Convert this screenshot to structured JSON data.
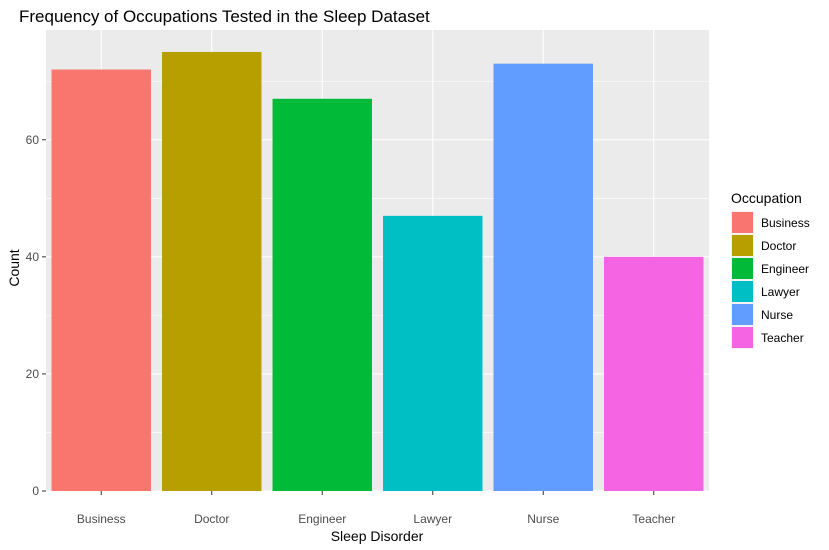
{
  "chart_data": {
    "type": "bar",
    "title": "Frequency of Occupations Tested in the Sleep Dataset",
    "xlabel": "Sleep Disorder",
    "ylabel": "Count",
    "categories": [
      "Business",
      "Doctor",
      "Engineer",
      "Lawyer",
      "Nurse",
      "Teacher"
    ],
    "values": [
      72,
      75,
      67,
      47,
      73,
      40
    ],
    "ylim": [
      0,
      78.75
    ],
    "yticks": [
      0,
      20,
      40,
      60
    ],
    "grid": true,
    "legend": {
      "title": "Occupation",
      "placement": "right",
      "entries": [
        "Business",
        "Doctor",
        "Engineer",
        "Lawyer",
        "Nurse",
        "Teacher"
      ]
    },
    "colors": [
      "#F8766D",
      "#B79F00",
      "#00BA38",
      "#00BFC4",
      "#619CFF",
      "#F564E3"
    ],
    "panel_background": "#EBEBEB",
    "grid_color": "#FFFFFF"
  }
}
